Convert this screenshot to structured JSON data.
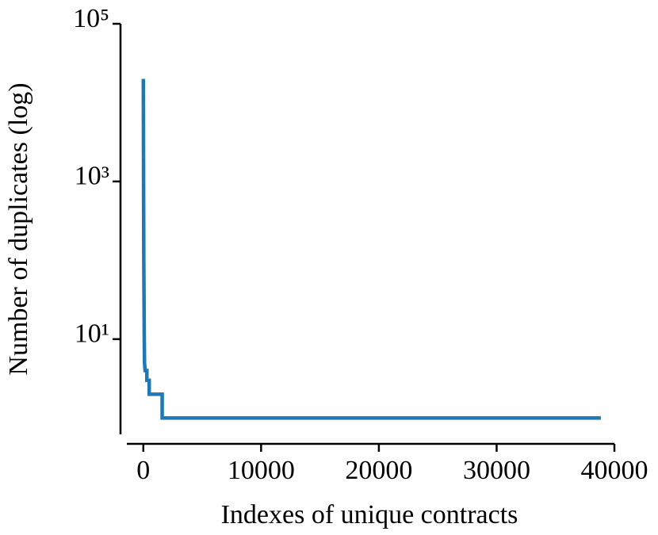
{
  "chart_data": {
    "type": "line",
    "xlabel": "Indexes of unique contracts",
    "ylabel": "Number of duplicates (log)",
    "x": [
      0,
      20,
      40,
      80,
      100,
      150,
      300,
      300,
      500,
      500,
      1600,
      1600,
      38850
    ],
    "series": [
      {
        "name": "duplicates",
        "color": "#1f77b4",
        "values": [
          20000,
          1000,
          100,
          10,
          5,
          4,
          4,
          3,
          3,
          2,
          2,
          1,
          1
        ]
      }
    ],
    "xlim": [
      -1400,
      40000
    ],
    "xticks": [
      0,
      10000,
      20000,
      30000,
      40000
    ],
    "ylim": [
      0.62,
      100000
    ],
    "yscale": "log",
    "yticks": [
      {
        "value": 10,
        "label": "10¹"
      },
      {
        "value": 1000,
        "label": "10³"
      },
      {
        "value": 100000,
        "label": "10⁵"
      }
    ]
  }
}
